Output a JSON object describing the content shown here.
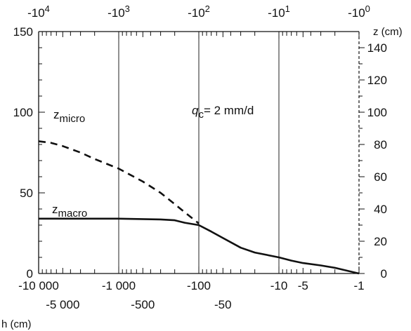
{
  "chart_data": {
    "type": "line",
    "x_scale": "log-negative",
    "xlabel": "h (cm)",
    "ylabel_right": "z (cm)",
    "xlim": [
      -10000,
      -1
    ],
    "ylim": [
      0,
      150
    ],
    "grid": "vertical lines at -10000, -1000, -100, -10",
    "top_ticks": [
      {
        "base": "-10",
        "exp": "4",
        "x": -10000
      },
      {
        "base": "-10",
        "exp": "3",
        "x": -1000
      },
      {
        "base": "-10",
        "exp": "2",
        "x": -100
      },
      {
        "base": "-10",
        "exp": "1",
        "x": -10
      },
      {
        "base": "-10",
        "exp": "0",
        "x": -1
      }
    ],
    "bottom_ticks_row1": [
      {
        "label": "-10 000",
        "x": -10000
      },
      {
        "label": "-1 000",
        "x": -1000
      },
      {
        "label": "-100",
        "x": -100
      },
      {
        "label": "-10",
        "x": -10
      },
      {
        "label": "-5",
        "x": -5
      },
      {
        "label": "-1",
        "x": -1
      }
    ],
    "bottom_ticks_row2": [
      {
        "label": "-5 000",
        "x": -5000
      },
      {
        "label": "-500",
        "x": -500
      },
      {
        "label": "-50",
        "x": -50
      }
    ],
    "left_ticks": [
      {
        "label": "0",
        "y": 0
      },
      {
        "label": "50",
        "y": 50
      },
      {
        "label": "100",
        "y": 100
      },
      {
        "label": "150",
        "y": 150
      }
    ],
    "right_ticks": [
      {
        "label": "0",
        "y": 0
      },
      {
        "label": "20",
        "y": 20
      },
      {
        "label": "40",
        "y": 40
      },
      {
        "label": "60",
        "y": 60
      },
      {
        "label": "80",
        "y": 80
      },
      {
        "label": "100",
        "y": 100
      },
      {
        "label": "120",
        "y": 120
      },
      {
        "label": "140",
        "y": 140
      }
    ],
    "annotation": {
      "q": "q",
      "sub": "c",
      "rest": "= 2 mm/d"
    },
    "series": [
      {
        "name": "z_micro",
        "label_base": "z",
        "label_sub": "micro",
        "style": "dashed",
        "color": "#111111",
        "points": [
          [
            -10000,
            82
          ],
          [
            -7000,
            81
          ],
          [
            -5000,
            79
          ],
          [
            -3000,
            75
          ],
          [
            -2000,
            71
          ],
          [
            -1000,
            65
          ],
          [
            -500,
            57
          ],
          [
            -300,
            50
          ],
          [
            -200,
            43
          ],
          [
            -150,
            38
          ],
          [
            -100,
            31
          ]
        ]
      },
      {
        "name": "z_macro",
        "label_base": "z",
        "label_sub": "macro",
        "style": "solid",
        "color": "#111111",
        "points": [
          [
            -10000,
            34
          ],
          [
            -3000,
            34
          ],
          [
            -1000,
            34
          ],
          [
            -300,
            33.5
          ],
          [
            -200,
            33
          ],
          [
            -150,
            31.5
          ],
          [
            -100,
            30
          ],
          [
            -70,
            26
          ],
          [
            -50,
            22
          ],
          [
            -30,
            16
          ],
          [
            -20,
            13
          ],
          [
            -10,
            10
          ],
          [
            -7,
            8
          ],
          [
            -5,
            6.5
          ],
          [
            -3,
            5
          ],
          [
            -2,
            3.5
          ],
          [
            -1,
            0
          ]
        ]
      }
    ]
  }
}
